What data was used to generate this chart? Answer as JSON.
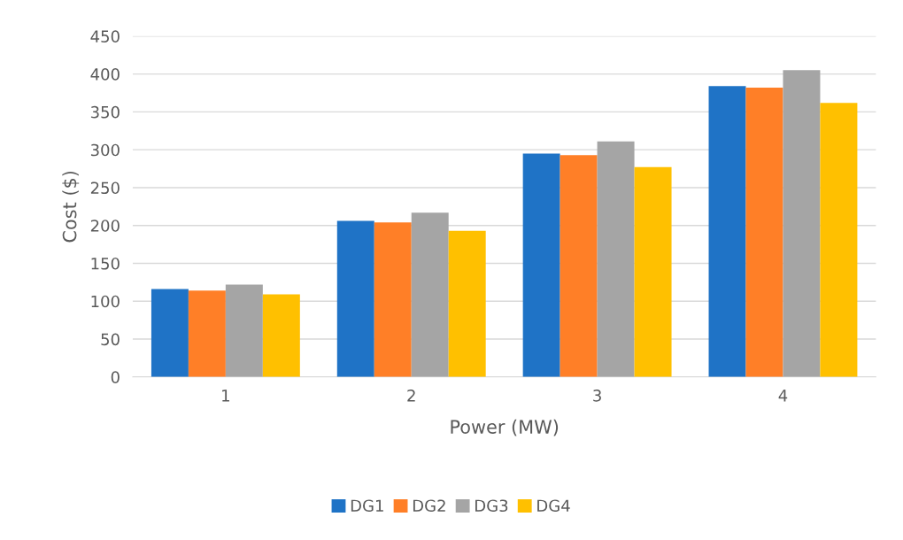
{
  "chart_data": {
    "type": "bar",
    "xlabel": "Power (MW)",
    "ylabel": "Cost ($)",
    "categories": [
      "1",
      "2",
      "3",
      "4"
    ],
    "series": [
      {
        "name": "DG1",
        "color": "#1f73c6",
        "values": [
          116,
          206,
          295,
          384
        ]
      },
      {
        "name": "DG2",
        "color": "#ff7f27",
        "values": [
          114,
          204,
          293,
          382
        ]
      },
      {
        "name": "DG3",
        "color": "#a5a5a5",
        "values": [
          122,
          217,
          311,
          405
        ]
      },
      {
        "name": "DG4",
        "color": "#ffc000",
        "values": [
          109,
          193,
          277,
          362
        ]
      }
    ],
    "ylim": [
      0,
      450
    ],
    "yticks": [
      0,
      50,
      100,
      150,
      200,
      250,
      300,
      350,
      400,
      450
    ],
    "grid": "y",
    "legend": "bottom"
  }
}
